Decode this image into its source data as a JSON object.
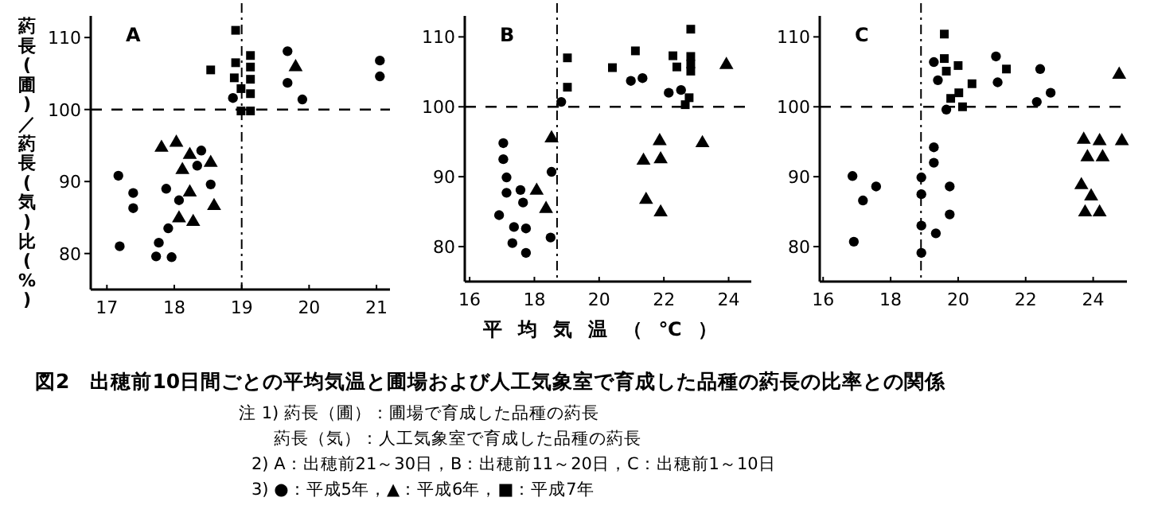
{
  "chart_data": [
    {
      "type": "scatter",
      "ylabel": "葯長(圃)／葯長(気)比(%)",
      "annotations": [
        "A"
      ],
      "xlim": [
        16.76,
        21.2
      ],
      "ylim": [
        75,
        113
      ],
      "xticks": [
        17,
        18,
        19,
        20,
        21
      ],
      "yticks": [
        80,
        90,
        100,
        110
      ],
      "grid": false,
      "ref_lines": [
        {
          "axis": "y",
          "value": 100,
          "line_style": "dashed"
        },
        {
          "axis": "x",
          "value": 19,
          "line_style": "dotted"
        }
      ],
      "series": [
        {
          "color": "#000000",
          "marker": "circle",
          "x": [
            17.17,
            17.39,
            17.39,
            17.19,
            17.88,
            17.91,
            17.77,
            17.73,
            17.96,
            18.07,
            18.34,
            18.4,
            18.54,
            18.87,
            19.68,
            19.68,
            19.9,
            21.05,
            21.05
          ],
          "values": [
            90.8,
            88.4,
            86.3,
            81.0,
            89.0,
            83.5,
            81.5,
            79.6,
            79.5,
            87.4,
            92.2,
            94.3,
            89.6,
            101.6,
            108.1,
            103.7,
            101.4,
            106.8,
            104.6
          ]
        },
        {
          "color": "#000000",
          "marker": "triangle",
          "x": [
            17.81,
            18.03,
            18.12,
            18.23,
            18.23,
            18.07,
            18.28,
            18.54,
            18.59,
            19.8
          ],
          "values": [
            94.7,
            95.4,
            91.6,
            93.7,
            88.5,
            84.9,
            84.4,
            92.6,
            86.6,
            105.9
          ]
        },
        {
          "color": "#000000",
          "marker": "square",
          "x": [
            18.54,
            18.91,
            18.91,
            18.89,
            18.99,
            18.99,
            19.13,
            19.13,
            19.13,
            19.13,
            19.13
          ],
          "values": [
            105.5,
            111.0,
            106.5,
            104.4,
            102.9,
            99.8,
            99.8,
            107.5,
            105.9,
            104.2,
            102.2
          ]
        }
      ]
    },
    {
      "type": "scatter",
      "xlabel": "平均気温（℃）",
      "annotations": [
        "B"
      ],
      "xlim": [
        15.85,
        24.7
      ],
      "ylim": [
        75,
        113
      ],
      "xticks": [
        16,
        18,
        20,
        22,
        24
      ],
      "yticks": [
        80,
        90,
        100,
        110
      ],
      "grid": false,
      "ref_lines": [
        {
          "axis": "y",
          "value": 100,
          "line_style": "dashed"
        },
        {
          "axis": "x",
          "value": 18.7,
          "line_style": "dotted"
        }
      ],
      "series": [
        {
          "color": "#000000",
          "marker": "circle",
          "x": [
            17.04,
            17.04,
            17.14,
            17.14,
            16.91,
            17.37,
            17.32,
            17.57,
            17.65,
            17.74,
            17.74,
            18.53,
            18.5,
            18.83,
            20.98,
            21.34,
            22.15,
            22.53
          ],
          "values": [
            94.8,
            92.5,
            89.9,
            87.7,
            84.5,
            82.8,
            80.5,
            88.1,
            86.3,
            82.6,
            79.1,
            90.7,
            81.3,
            100.7,
            103.7,
            104.1,
            102.0,
            102.4
          ]
        },
        {
          "color": "#000000",
          "marker": "triangle",
          "x": [
            18.07,
            18.36,
            18.53,
            21.37,
            21.45,
            21.87,
            21.9,
            21.9,
            23.19,
            23.93
          ],
          "values": [
            88.0,
            85.4,
            95.5,
            92.3,
            86.7,
            95.1,
            92.5,
            84.9,
            94.8,
            106.0
          ]
        },
        {
          "color": "#000000",
          "marker": "square",
          "x": [
            19.02,
            19.02,
            20.41,
            21.12,
            22.28,
            22.4,
            22.66,
            22.78,
            22.83,
            22.83,
            22.83,
            22.83
          ],
          "values": [
            107.0,
            102.8,
            105.6,
            108.0,
            107.3,
            105.7,
            100.3,
            101.3,
            111.1,
            107.2,
            106.1,
            105.1
          ]
        }
      ]
    },
    {
      "type": "scatter",
      "annotations": [
        "C"
      ],
      "xlim": [
        15.9,
        25.0
      ],
      "ylim": [
        75,
        113
      ],
      "xticks": [
        16,
        18,
        20,
        22,
        24
      ],
      "yticks": [
        80,
        90,
        100,
        110
      ],
      "grid": false,
      "ref_lines": [
        {
          "axis": "y",
          "value": 100,
          "line_style": "dashed"
        },
        {
          "axis": "x",
          "value": 18.9,
          "line_style": "dotted"
        }
      ],
      "series": [
        {
          "color": "#000000",
          "marker": "circle",
          "x": [
            16.87,
            17.18,
            17.57,
            16.91,
            18.91,
            18.91,
            18.91,
            18.91,
            19.28,
            19.28,
            19.34,
            19.75,
            19.75,
            19.28,
            19.4,
            19.65,
            21.12,
            21.17,
            22.43,
            22.33,
            22.74
          ],
          "values": [
            90.1,
            86.6,
            88.6,
            80.7,
            89.9,
            87.5,
            83.0,
            79.1,
            94.2,
            92.0,
            81.9,
            88.6,
            84.6,
            106.4,
            103.8,
            99.6,
            107.2,
            103.5,
            105.4,
            100.7,
            102.0
          ]
        },
        {
          "color": "#000000",
          "marker": "triangle",
          "x": [
            24.77,
            23.72,
            24.19,
            24.85,
            23.83,
            24.28,
            23.65,
            23.94,
            23.76,
            24.19
          ],
          "values": [
            104.6,
            95.3,
            95.1,
            95.1,
            92.8,
            92.8,
            88.8,
            87.2,
            84.9,
            84.9
          ]
        },
        {
          "color": "#000000",
          "marker": "square",
          "x": [
            19.59,
            19.59,
            19.65,
            20.0,
            19.78,
            20.02,
            20.13,
            20.41,
            21.43
          ],
          "values": [
            110.4,
            106.9,
            105.1,
            105.9,
            101.2,
            102.0,
            100.0,
            103.3,
            105.4
          ]
        }
      ]
    },
    {
      "type": "other",
      "title": "図2　出穂前10日間ごとの平均気温と圃場および人工気象室で育成した品種の葯長の比率との関係",
      "annotations": [
        "注 1) 葯長（圃）：圃場で育成した品種の葯長",
        "葯長（気）：人工気象室で育成した品種の葯長",
        "2) A：出穂前21～30日，B：出穂前11～20日，C：出穂前1～10日",
        "3) ●：平成5年，▲：平成6年，■：平成7年"
      ]
    }
  ]
}
